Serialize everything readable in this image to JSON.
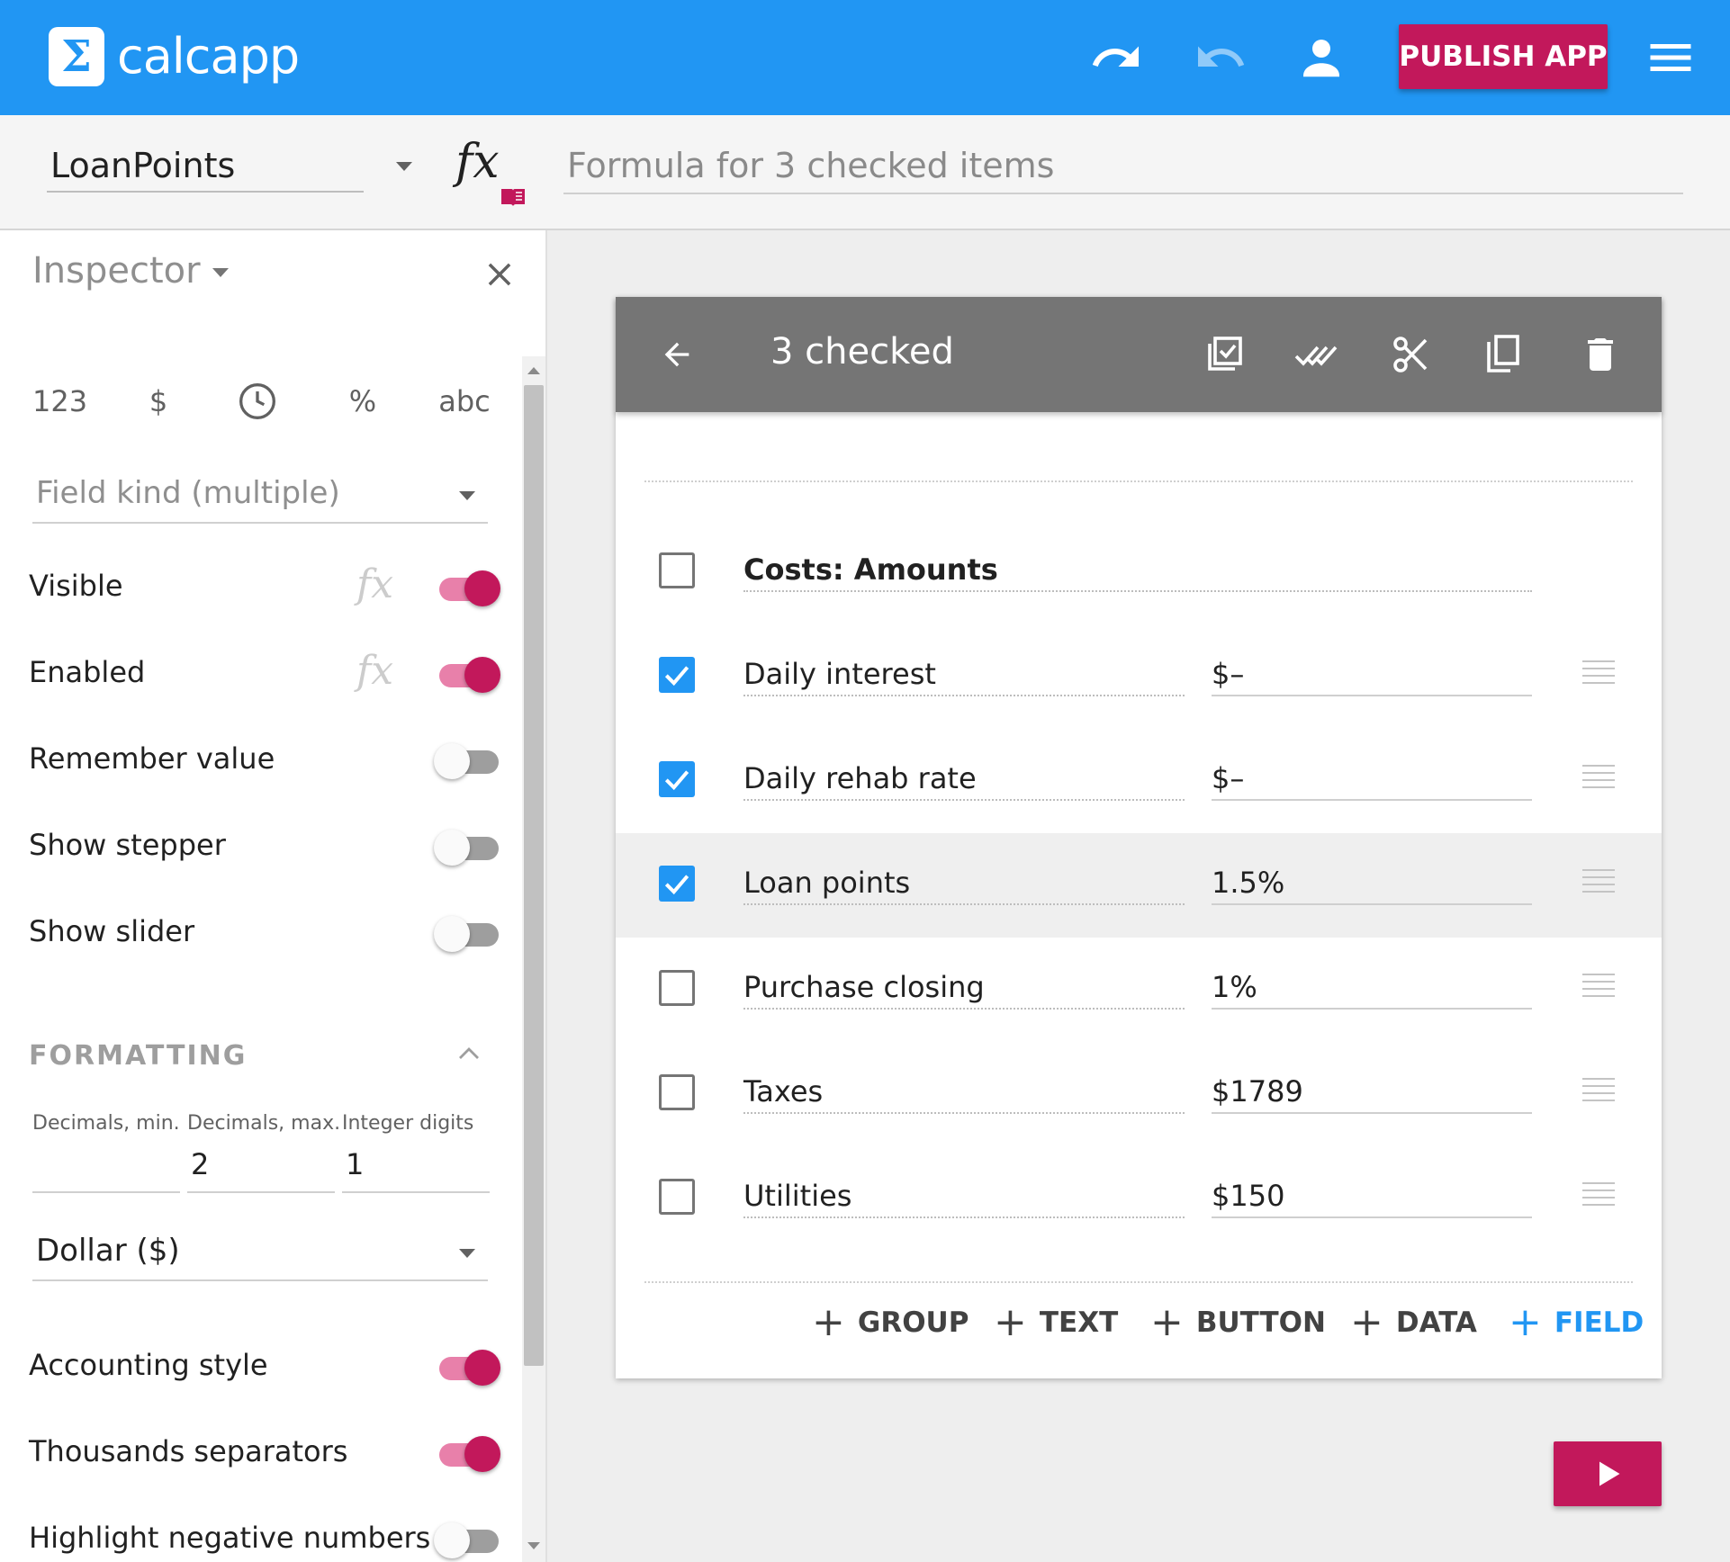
{
  "header": {
    "logo_symbol": "Σ",
    "app_name": "calcapp",
    "publish_label": "PUBLISH APP",
    "icons": [
      "undo-icon",
      "redo-icon",
      "account-icon",
      "menu-icon"
    ]
  },
  "formula_bar": {
    "screen_name": "LoanPoints",
    "fx_label": "fx",
    "formula_placeholder": "Formula for 3 checked items"
  },
  "inspector": {
    "title": "Inspector",
    "type_buttons": [
      "123",
      "$",
      "clock-icon",
      "%",
      "abc"
    ],
    "type_labels": {
      "number": "123",
      "currency": "$",
      "percent": "%",
      "text": "abc"
    },
    "field_kind": "Field kind (multiple)",
    "toggles": {
      "visible": {
        "label": "Visible",
        "on": true
      },
      "enabled": {
        "label": "Enabled",
        "on": true
      },
      "remember_value": {
        "label": "Remember value",
        "on": false
      },
      "show_stepper": {
        "label": "Show stepper",
        "on": false
      },
      "show_slider": {
        "label": "Show slider",
        "on": false
      },
      "accounting_style": {
        "label": "Accounting style",
        "on": true
      },
      "thousands_separators": {
        "label": "Thousands separators",
        "on": true
      },
      "highlight_negative": {
        "label": "Highlight negative numbers",
        "on": false
      }
    },
    "fx_label": "fx",
    "formatting": {
      "heading": "FORMATTING",
      "decimals_min_label": "Decimals, min.",
      "decimals_max_label": "Decimals, max.",
      "integer_digits_label": "Integer digits",
      "decimals_min": "",
      "decimals_max": "2",
      "integer_digits": "1",
      "currency": "Dollar ($)"
    }
  },
  "canvas": {
    "toolbar": {
      "title": "3 checked",
      "icons": [
        "back-arrow-icon",
        "select-all-icon",
        "double-check-icon",
        "cut-icon",
        "copy-icon",
        "delete-icon"
      ]
    },
    "items": [
      {
        "name": "Costs: Amounts",
        "value": "",
        "checked": false,
        "group": true
      },
      {
        "name": "Daily interest",
        "value": "$–",
        "checked": true
      },
      {
        "name": "Daily rehab rate",
        "value": "$–",
        "checked": true
      },
      {
        "name": "Loan points",
        "value": "1.5%",
        "checked": true,
        "selected": true
      },
      {
        "name": "Purchase closing",
        "value": "1%",
        "checked": false
      },
      {
        "name": "Taxes",
        "value": "$1789",
        "checked": false
      },
      {
        "name": "Utilities",
        "value": "$150",
        "checked": false
      }
    ],
    "add_buttons": {
      "group": "GROUP",
      "text": "TEXT",
      "button": "BUTTON",
      "data": "DATA",
      "field": "FIELD",
      "plus": "+"
    }
  },
  "colors": {
    "primary": "#2196f3",
    "accent": "#c2185b",
    "toolbar_gray": "#757575"
  }
}
